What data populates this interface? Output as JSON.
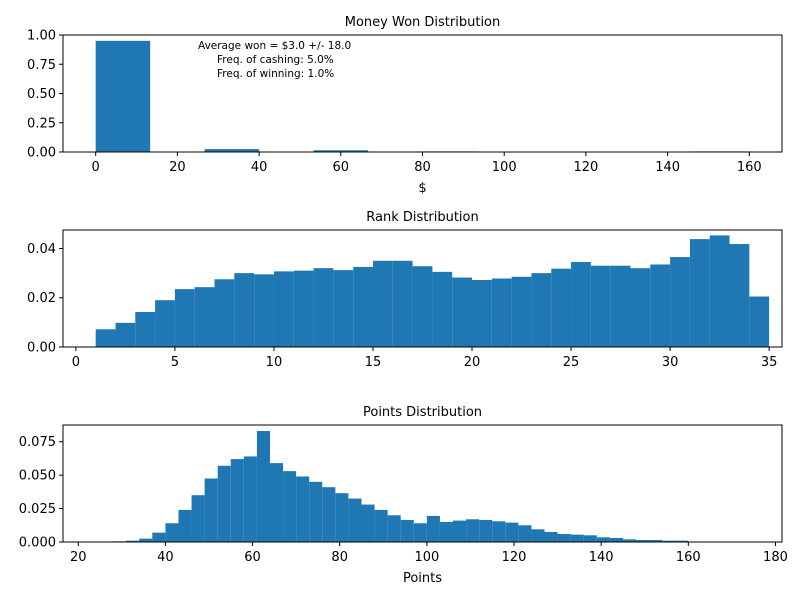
{
  "chart_data": [
    {
      "type": "bar",
      "title": "Money Won Distribution",
      "xlabel": "$",
      "ylabel": "",
      "xlim": [
        -8,
        168
      ],
      "ylim": [
        0,
        1.0
      ],
      "xticks": [
        0,
        20,
        40,
        60,
        80,
        100,
        120,
        140,
        160
      ],
      "yticks": [
        0.0,
        0.25,
        0.5,
        0.75,
        1.0
      ],
      "xtick_labels": [
        "0",
        "20",
        "40",
        "60",
        "80",
        "100",
        "120",
        "140",
        "160"
      ],
      "ytick_labels": [
        "0.00",
        "0.25",
        "0.50",
        "0.75",
        "1.00"
      ],
      "bin_width": 13.33,
      "bins": [
        {
          "x": 0.0,
          "value": 0.95
        },
        {
          "x": 26.67,
          "value": 0.025
        },
        {
          "x": 53.33,
          "value": 0.015
        },
        {
          "x": 80.0,
          "value": 0.005
        },
        {
          "x": 146.67,
          "value": 0.005
        }
      ],
      "annotations": [
        "Average won = $3.0 +/- 18.0",
        "Freq. of cashing: 5.0%",
        "Freq. of winning: 1.0%"
      ],
      "color": "#1f77b4"
    },
    {
      "type": "bar",
      "title": "Rank Distribution",
      "xlabel": "",
      "ylabel": "",
      "xlim": [
        -0.65,
        35.65
      ],
      "ylim": [
        0,
        0.0475
      ],
      "xticks": [
        0,
        5,
        10,
        15,
        20,
        25,
        30,
        35
      ],
      "yticks": [
        0.0,
        0.02,
        0.04
      ],
      "xtick_labels": [
        "0",
        "5",
        "10",
        "15",
        "20",
        "25",
        "30",
        "35"
      ],
      "ytick_labels": [
        "0.00",
        "0.02",
        "0.04"
      ],
      "bin_start": 1,
      "bin_width": 1,
      "values": [
        0.0072,
        0.0098,
        0.0142,
        0.019,
        0.0235,
        0.0243,
        0.0275,
        0.03,
        0.0295,
        0.0307,
        0.031,
        0.032,
        0.0312,
        0.0325,
        0.035,
        0.035,
        0.0328,
        0.0305,
        0.0282,
        0.0272,
        0.0278,
        0.0285,
        0.03,
        0.0318,
        0.0345,
        0.033,
        0.033,
        0.032,
        0.0335,
        0.0365,
        0.0438,
        0.0453,
        0.0418,
        0.0205
      ],
      "color": "#1f77b4"
    },
    {
      "type": "bar",
      "title": "Points Distribution",
      "xlabel": "Points",
      "ylabel": "",
      "xlim": [
        16.5,
        181.5
      ],
      "ylim": [
        0,
        0.0875
      ],
      "xticks": [
        20,
        40,
        60,
        80,
        100,
        120,
        140,
        160,
        180
      ],
      "yticks": [
        0.0,
        0.025,
        0.05,
        0.075
      ],
      "xtick_labels": [
        "20",
        "40",
        "60",
        "80",
        "100",
        "120",
        "140",
        "160",
        "180"
      ],
      "ytick_labels": [
        "0.000",
        "0.025",
        "0.050",
        "0.075"
      ],
      "bin_start": 28,
      "bin_width": 3,
      "values": [
        0.0005,
        0.001,
        0.0025,
        0.007,
        0.014,
        0.024,
        0.035,
        0.0475,
        0.057,
        0.062,
        0.064,
        0.083,
        0.059,
        0.053,
        0.049,
        0.045,
        0.041,
        0.0365,
        0.0325,
        0.028,
        0.024,
        0.02,
        0.0165,
        0.014,
        0.0195,
        0.015,
        0.016,
        0.017,
        0.0165,
        0.0155,
        0.0145,
        0.0125,
        0.0095,
        0.0075,
        0.006,
        0.0055,
        0.005,
        0.0035,
        0.003,
        0.002,
        0.0015,
        0.0015,
        0.001,
        0.001
      ],
      "color": "#1f77b4"
    }
  ]
}
